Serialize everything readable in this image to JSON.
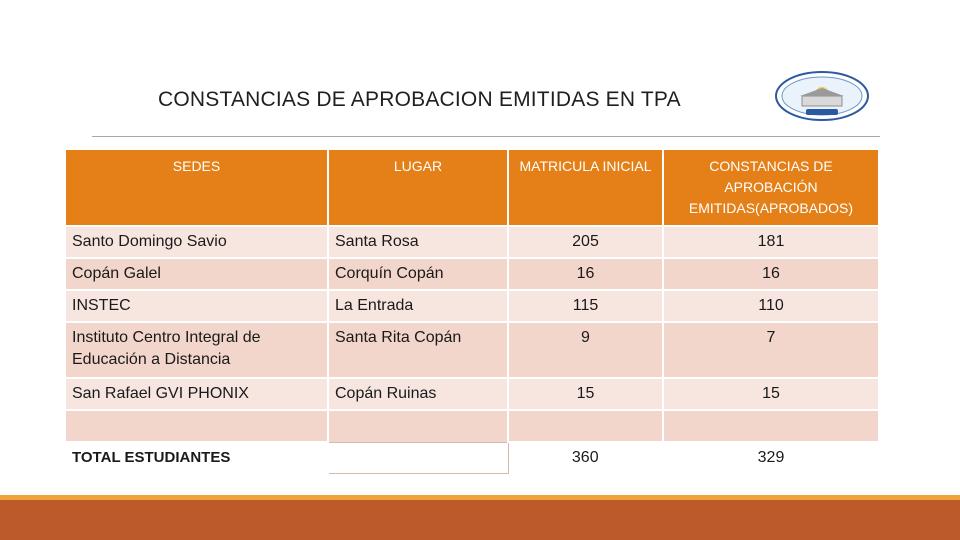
{
  "slide": {
    "title": "CONSTANCIAS DE APROBACION EMITIDAS EN TPA",
    "logo_icon": "institution-seal-icon"
  },
  "table": {
    "headers": [
      "SEDES",
      "LUGAR",
      "MATRICULA INICIAL",
      "CONSTANCIAS DE APROBACIÓN EMITIDAS(APROBADOS)"
    ],
    "rows": [
      {
        "sede": "Santo Domingo Savio",
        "lugar": "Santa Rosa",
        "matricula": "205",
        "constancias": "181"
      },
      {
        "sede": "Copán Galel",
        "lugar": "Corquín Copán",
        "matricula": "16",
        "constancias": "16"
      },
      {
        "sede": "INSTEC",
        "lugar": "La Entrada",
        "matricula": "115",
        "constancias": "110"
      },
      {
        "sede": "Instituto Centro Integral de Educación a Distancia",
        "lugar": "Santa Rita Copán",
        "matricula": "9",
        "constancias": "7"
      },
      {
        "sede": "San Rafael GVI PHONIX",
        "lugar": "Copán Ruinas",
        "matricula": "15",
        "constancias": "15"
      }
    ],
    "total": {
      "label": "TOTAL ESTUDIANTES",
      "lugar": "",
      "matricula": "360",
      "constancias": "329"
    }
  },
  "colors": {
    "header": "#e58019",
    "row_light": "#f7e6e0",
    "row_mid": "#f2d5cb",
    "footer": "#bd5a2a",
    "footer_accent": "#f0a33d"
  }
}
